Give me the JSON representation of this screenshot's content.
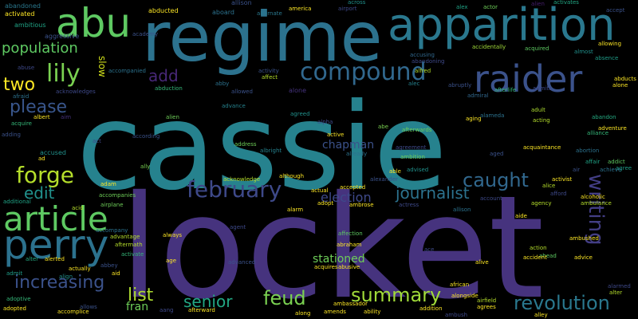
{
  "words": [
    {
      "text": "cassie",
      "color": "#26828e"
    },
    {
      "text": "locket",
      "color": "#46337e"
    },
    {
      "text": "regime",
      "color": "#2c728e"
    },
    {
      "text": "apparition",
      "color": "#2a788e"
    },
    {
      "text": "abu",
      "color": "#5ec962"
    },
    {
      "text": "raider",
      "color": "#3b528b"
    },
    {
      "text": "compound",
      "color": "#31688e"
    },
    {
      "text": "article",
      "color": "#5ec962"
    },
    {
      "text": "perry",
      "color": "#2c728e"
    },
    {
      "text": "population",
      "color": "#5ec962"
    },
    {
      "text": "lily",
      "color": "#7ad151"
    },
    {
      "text": "add",
      "color": "#482878"
    },
    {
      "text": "two",
      "color": "#fde725"
    },
    {
      "text": "please",
      "color": "#39568c"
    },
    {
      "text": "forge",
      "color": "#b5de2b"
    },
    {
      "text": "edit",
      "color": "#21918c"
    },
    {
      "text": "february",
      "color": "#3e4989"
    },
    {
      "text": "caught",
      "color": "#31688e"
    },
    {
      "text": "journalist",
      "color": "#2c728e"
    },
    {
      "text": "writing",
      "color": "#433e85"
    },
    {
      "text": "increasing",
      "color": "#3b528b"
    },
    {
      "text": "chapman",
      "color": "#3b528b"
    },
    {
      "text": "election",
      "color": "#3e4989"
    },
    {
      "text": "senior",
      "color": "#22a884"
    },
    {
      "text": "feud",
      "color": "#7ad151"
    },
    {
      "text": "summary",
      "color": "#a0da39"
    },
    {
      "text": "revolution",
      "color": "#2a788e"
    },
    {
      "text": "list",
      "color": "#addc30"
    },
    {
      "text": "stationed",
      "color": "#6ece58"
    },
    {
      "text": "slow",
      "color": "#d2e21b"
    },
    {
      "text": "fran",
      "color": "#6ece58"
    },
    {
      "text": "abandoned",
      "color": "#2a788e"
    },
    {
      "text": "activated",
      "color": "#fde725"
    },
    {
      "text": "ambitious",
      "color": "#20a486"
    },
    {
      "text": "aggressive",
      "color": "#3b528b"
    },
    {
      "text": "abuse",
      "color": "#3e4989"
    },
    {
      "text": "afraid",
      "color": "#2c728e"
    },
    {
      "text": "acquire",
      "color": "#35b779"
    },
    {
      "text": "adding",
      "color": "#3b528b"
    },
    {
      "text": "additional",
      "color": "#20a486"
    },
    {
      "text": "alter",
      "color": "#25ab82"
    },
    {
      "text": "admit",
      "color": "#1f9e89"
    },
    {
      "text": "adoptive",
      "color": "#35b779"
    },
    {
      "text": "adopted",
      "color": "#fde725"
    },
    {
      "text": "allison",
      "color": "#3b528b"
    },
    {
      "text": "across",
      "color": "#21918c"
    },
    {
      "text": "alex",
      "color": "#20a486"
    },
    {
      "text": "actor",
      "color": "#6ece58"
    },
    {
      "text": "activates",
      "color": "#22a884"
    },
    {
      "text": "america",
      "color": "#fde725"
    },
    {
      "text": "airport",
      "color": "#3e4989"
    },
    {
      "text": "alien",
      "color": "#481f70"
    },
    {
      "text": "accept",
      "color": "#3b528b"
    },
    {
      "text": "abducted",
      "color": "#fde725"
    },
    {
      "text": "aboard",
      "color": "#2c728e"
    },
    {
      "text": "alternate",
      "color": "#2a788e"
    },
    {
      "text": "academy",
      "color": "#3b528b"
    },
    {
      "text": "accidentally",
      "color": "#a0da39"
    },
    {
      "text": "acquired",
      "color": "#5ec962"
    },
    {
      "text": "allowing",
      "color": "#fde725"
    },
    {
      "text": "almost",
      "color": "#21918c"
    },
    {
      "text": "absence",
      "color": "#1f9e89"
    },
    {
      "text": "alone",
      "color": "#46337e"
    },
    {
      "text": "accompanied",
      "color": "#2c728e"
    },
    {
      "text": "activity",
      "color": "#3b528b"
    },
    {
      "text": "accusing",
      "color": "#31688e"
    },
    {
      "text": "abandoning",
      "color": "#3e4989"
    },
    {
      "text": "alfred",
      "color": "#b5de2b"
    },
    {
      "text": "abducts",
      "color": "#fde725"
    },
    {
      "text": "abby",
      "color": "#2c728e"
    },
    {
      "text": "affect",
      "color": "#b5de2b"
    },
    {
      "text": "alone",
      "color": "#fde725"
    },
    {
      "text": "alec",
      "color": "#26828e"
    },
    {
      "text": "abruptly",
      "color": "#3b528b"
    },
    {
      "text": "acknowledges",
      "color": "#3e4989"
    },
    {
      "text": "abduction",
      "color": "#35b779"
    },
    {
      "text": "allowed",
      "color": "#3b528b"
    },
    {
      "text": "admiral",
      "color": "#31688e"
    },
    {
      "text": "afterlife",
      "color": "#35b779"
    },
    {
      "text": "admits",
      "color": "#3e4989"
    },
    {
      "text": "albert",
      "color": "#fde725"
    },
    {
      "text": "aim",
      "color": "#46337e"
    },
    {
      "text": "advance",
      "color": "#26828e"
    },
    {
      "text": "alien",
      "color": "#6ece58"
    },
    {
      "text": "agreed",
      "color": "#21918c"
    },
    {
      "text": "alameda",
      "color": "#2c728e"
    },
    {
      "text": "aging",
      "color": "#fde725"
    },
    {
      "text": "acting",
      "color": "#b5de2b"
    },
    {
      "text": "abandon",
      "color": "#25ab82"
    },
    {
      "text": "adult",
      "color": "#addc30"
    },
    {
      "text": "adventure",
      "color": "#fde725"
    },
    {
      "text": "alliance",
      "color": "#35b779"
    },
    {
      "text": "alpha",
      "color": "#3e4989"
    },
    {
      "text": "abe",
      "color": "#7ad151"
    },
    {
      "text": "active",
      "color": "#fde725"
    },
    {
      "text": "afterwards",
      "color": "#6ece58"
    },
    {
      "text": "already",
      "color": "#2c728e"
    },
    {
      "text": "agreement",
      "color": "#3e4989"
    },
    {
      "text": "ambition",
      "color": "#6ece58"
    },
    {
      "text": "acquaintance",
      "color": "#fde725"
    },
    {
      "text": "aged",
      "color": "#3b528b"
    },
    {
      "text": "abortion",
      "color": "#2c728e"
    },
    {
      "text": "affair",
      "color": "#20a486"
    },
    {
      "text": "addict",
      "color": "#5ec962"
    },
    {
      "text": "agree",
      "color": "#1f9e89"
    },
    {
      "text": "air",
      "color": "#3b528b"
    },
    {
      "text": "achieve",
      "color": "#2c728e"
    },
    {
      "text": "accused",
      "color": "#21918c"
    },
    {
      "text": "ad",
      "color": "#fde725"
    },
    {
      "text": "act",
      "color": "#3e4989"
    },
    {
      "text": "according",
      "color": "#3b528b"
    },
    {
      "text": "address",
      "color": "#6ece58"
    },
    {
      "text": "albright",
      "color": "#26828e"
    },
    {
      "text": "ally",
      "color": "#7ad151"
    },
    {
      "text": "acknowledge",
      "color": "#b5de2b"
    },
    {
      "text": "alexander",
      "color": "#3b528b"
    },
    {
      "text": "able",
      "color": "#fde725"
    },
    {
      "text": "advised",
      "color": "#21918c"
    },
    {
      "text": "activist",
      "color": "#fde725"
    },
    {
      "text": "alice",
      "color": "#b5de2b"
    },
    {
      "text": "afford",
      "color": "#3e4989"
    },
    {
      "text": "alcoholic",
      "color": "#fde725"
    },
    {
      "text": "ambulance",
      "color": "#b5de2b"
    },
    {
      "text": "adam",
      "color": "#fde725"
    },
    {
      "text": "accompanies",
      "color": "#6ece58"
    },
    {
      "text": "airplane",
      "color": "#6ece58"
    },
    {
      "text": "although",
      "color": "#fde725"
    },
    {
      "text": "accepted",
      "color": "#fde725"
    },
    {
      "text": "adopt",
      "color": "#fde725"
    },
    {
      "text": "ambrose",
      "color": "#fde725"
    },
    {
      "text": "actual",
      "color": "#fde725"
    },
    {
      "text": "alarm",
      "color": "#fde725"
    },
    {
      "text": "actress",
      "color": "#3e4989"
    },
    {
      "text": "allison",
      "color": "#2c728e"
    },
    {
      "text": "account",
      "color": "#3e4989"
    },
    {
      "text": "agency",
      "color": "#b5de2b"
    },
    {
      "text": "aide",
      "color": "#fde725"
    },
    {
      "text": "acid",
      "color": "#b5de2b"
    },
    {
      "text": "accompany",
      "color": "#2c728e"
    },
    {
      "text": "advantage",
      "color": "#b5de2b"
    },
    {
      "text": "aftermath",
      "color": "#b5de2b"
    },
    {
      "text": "agent",
      "color": "#3e4989"
    },
    {
      "text": "affection",
      "color": "#5ec962"
    },
    {
      "text": "abraham",
      "color": "#fde725"
    },
    {
      "text": "abusive",
      "color": "#fde725"
    },
    {
      "text": "action",
      "color": "#b5de2b"
    },
    {
      "text": "ahead",
      "color": "#5ec962"
    },
    {
      "text": "advice",
      "color": "#fde725"
    },
    {
      "text": "ambushed",
      "color": "#fde725"
    },
    {
      "text": "always",
      "color": "#fde725"
    },
    {
      "text": "activate",
      "color": "#35b779"
    },
    {
      "text": "alerted",
      "color": "#fde725"
    },
    {
      "text": "abbey",
      "color": "#3b528b"
    },
    {
      "text": "actually",
      "color": "#fde725"
    },
    {
      "text": "align",
      "color": "#21918c"
    },
    {
      "text": "aid",
      "color": "#fde725"
    },
    {
      "text": "age",
      "color": "#fde725"
    },
    {
      "text": "advanced",
      "color": "#3b528b"
    },
    {
      "text": "acquires",
      "color": "#fde725"
    },
    {
      "text": "ace",
      "color": "#3e4989"
    },
    {
      "text": "alive",
      "color": "#fde725"
    },
    {
      "text": "accident",
      "color": "#fde725"
    },
    {
      "text": "alarmed",
      "color": "#3e4989"
    },
    {
      "text": "alter",
      "color": "#b5de2b"
    },
    {
      "text": "african",
      "color": "#fde725"
    },
    {
      "text": "alongside",
      "color": "#fde725"
    },
    {
      "text": "airfield",
      "color": "#b5de2b"
    },
    {
      "text": "agrees",
      "color": "#fde725"
    },
    {
      "text": "ambassador",
      "color": "#fde725"
    },
    {
      "text": "amends",
      "color": "#fde725"
    },
    {
      "text": "ability",
      "color": "#fde725"
    },
    {
      "text": "addition",
      "color": "#fde725"
    },
    {
      "text": "ambush",
      "color": "#3e4989"
    },
    {
      "text": "alley",
      "color": "#fde725"
    },
    {
      "text": "allows",
      "color": "#3b528b"
    },
    {
      "text": "accomplice",
      "color": "#fde725"
    },
    {
      "text": "afterward",
      "color": "#fde725"
    },
    {
      "text": "along",
      "color": "#fde725"
    },
    {
      "text": "aang",
      "color": "#3e4989"
    }
  ]
}
